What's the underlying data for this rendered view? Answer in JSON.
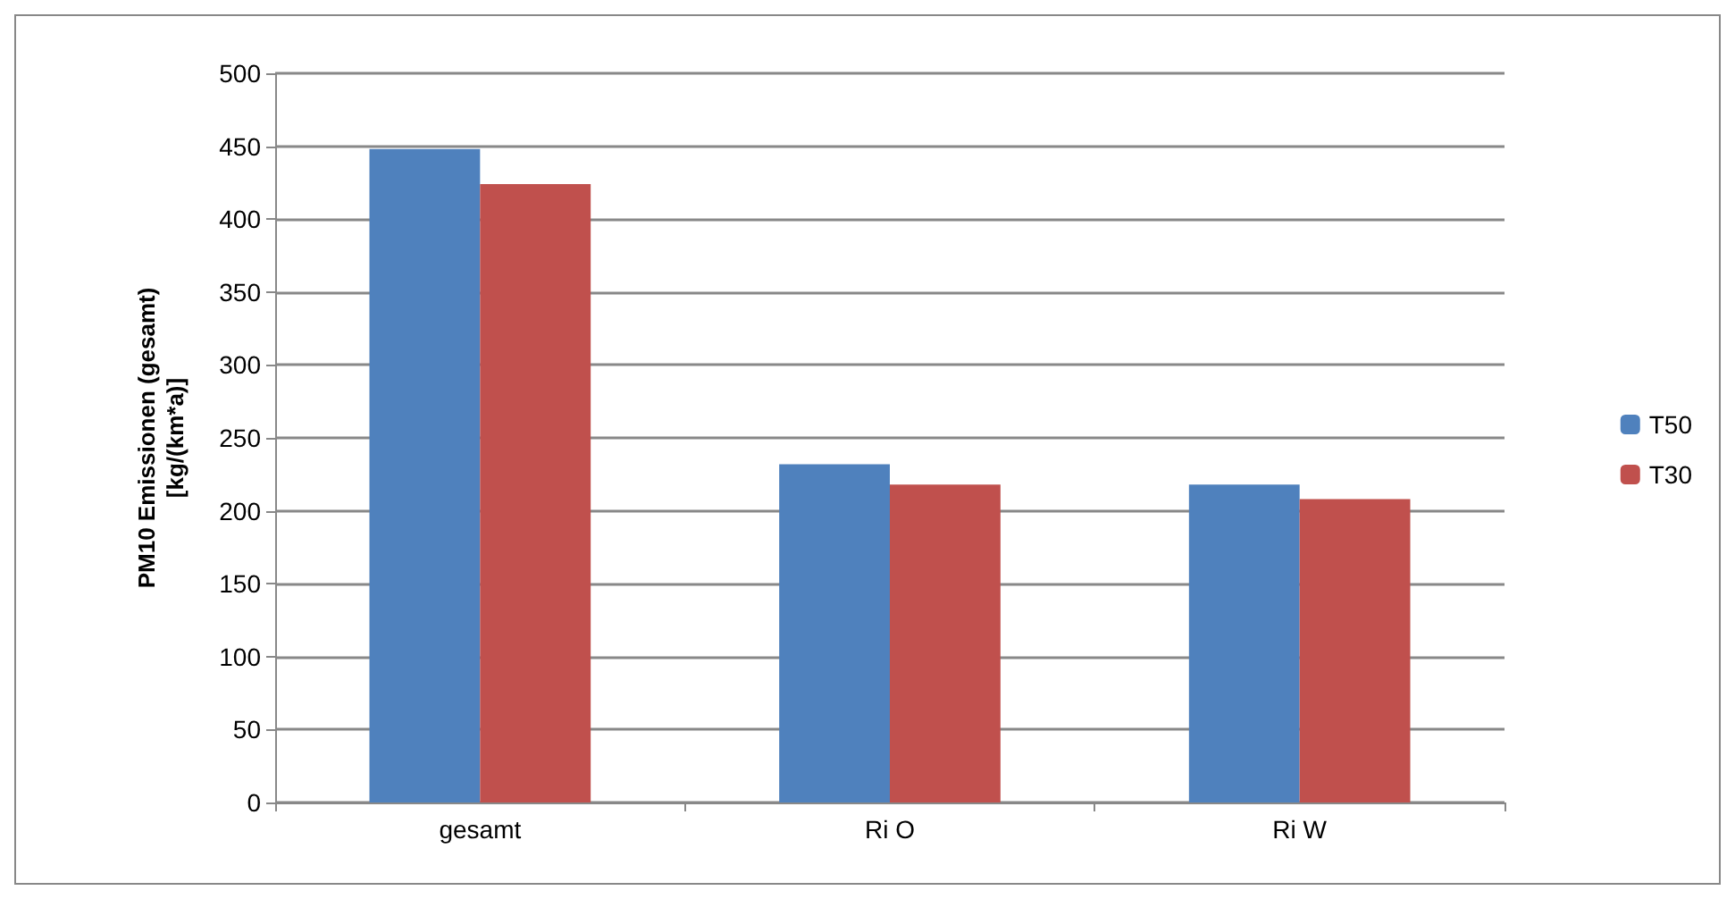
{
  "chart_data": {
    "type": "bar",
    "ylabel": "PM10 Emissionen (gesamt)\n[kg/(km*a)]",
    "categories": [
      "gesamt",
      "Ri O",
      "Ri W"
    ],
    "series": [
      {
        "name": "T50",
        "color": "#4f81bd",
        "values": [
          448,
          232,
          218
        ]
      },
      {
        "name": "T30",
        "color": "#c0504d",
        "values": [
          424,
          218,
          208
        ]
      }
    ],
    "ylim": [
      0,
      500
    ],
    "yticks": [
      0,
      50,
      100,
      150,
      200,
      250,
      300,
      350,
      400,
      450,
      500
    ],
    "grid": "y",
    "legend": "right"
  }
}
